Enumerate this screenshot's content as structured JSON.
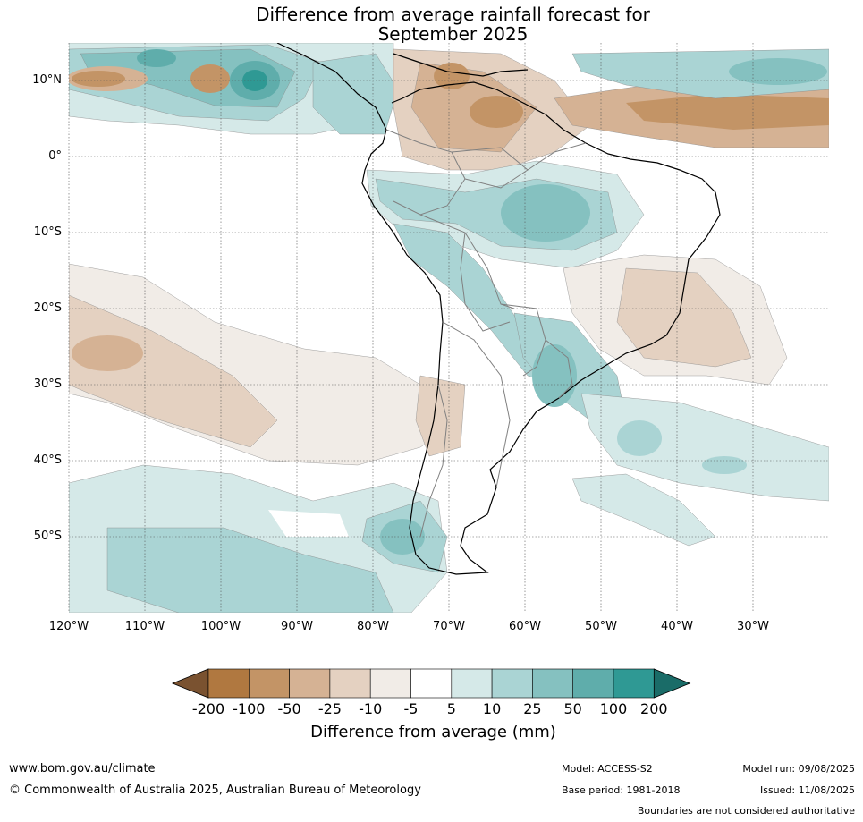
{
  "title_line1": "Difference from average rainfall forecast for",
  "title_line2": "September 2025",
  "map": {
    "lat_labels": [
      "10°N",
      "0°",
      "10°S",
      "20°S",
      "30°S",
      "40°S",
      "50°S"
    ],
    "lon_labels": [
      "120°W",
      "110°W",
      "100°W",
      "90°W",
      "80°W",
      "70°W",
      "60°W",
      "50°W",
      "40°W",
      "30°W"
    ],
    "extent": {
      "lon_min": -120,
      "lon_max": -20,
      "lat_min": -60,
      "lat_max": 15
    },
    "region": "South America",
    "gridlines": true
  },
  "colorbar": {
    "ticks": [
      "-200",
      "-100",
      "-50",
      "-25",
      "-10",
      "-5",
      "5",
      "10",
      "25",
      "50",
      "100",
      "200"
    ],
    "colors": [
      "#7a5230",
      "#b07840",
      "#c39466",
      "#d5b294",
      "#e4d1c1",
      "#f1ece7",
      "#ffffff",
      "#d5e9e8",
      "#aad4d4",
      "#85c1c0",
      "#5fadab",
      "#2f9994",
      "#1a6c68"
    ],
    "label": "Difference from average (mm)"
  },
  "footer": {
    "url": "www.bom.gov.au/climate",
    "copyright": "© Commonwealth of Australia 2025, Australian Bureau of Meteorology",
    "model": "Model: ACCESS-S2",
    "base_period": "Base period: 1981-2018",
    "model_run": "Model run: 09/08/2025",
    "issued": "Issued: 11/08/2025",
    "disclaimer": "Boundaries are not considered authoritative"
  }
}
